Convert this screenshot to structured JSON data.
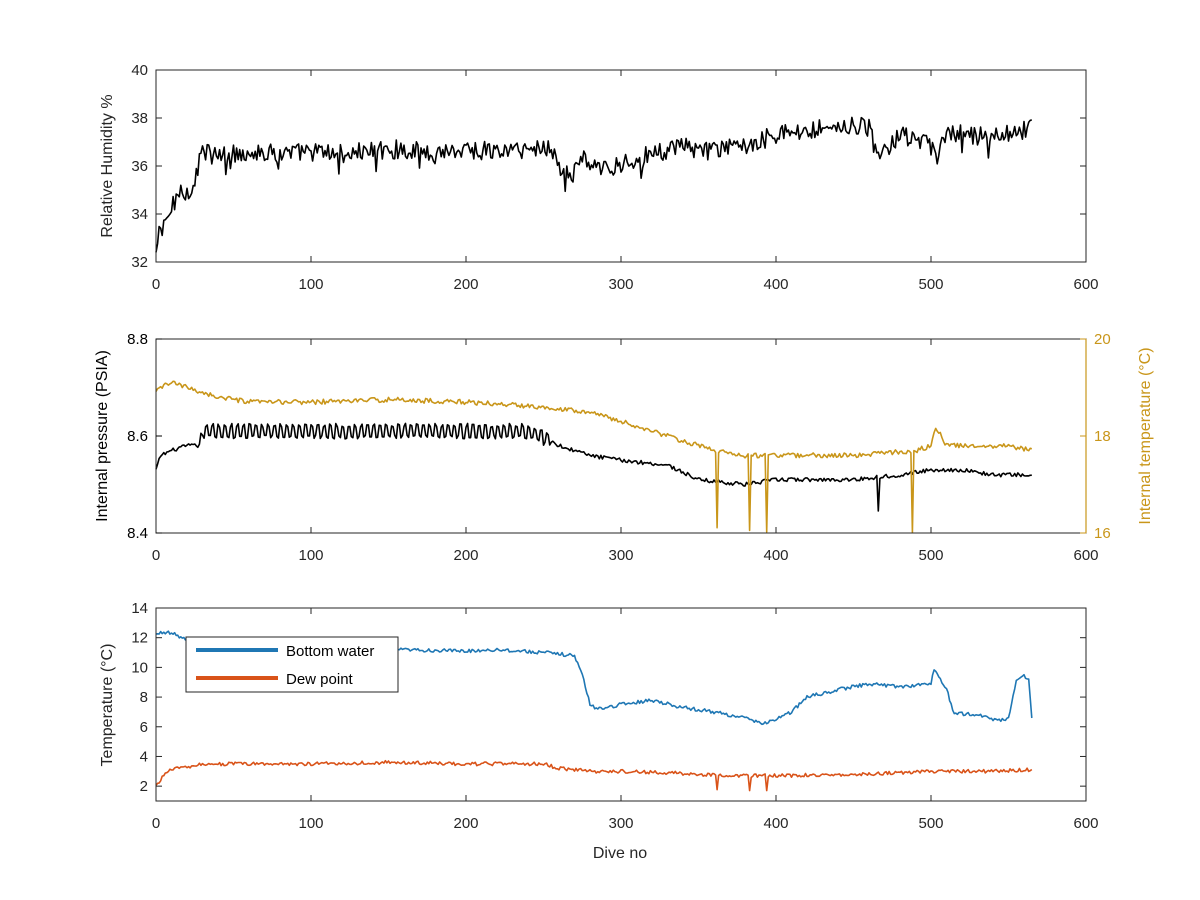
{
  "colors": {
    "black": "#000000",
    "gold": "#C9961A",
    "blue": "#1F77B4",
    "orange": "#D95319",
    "axis": "#262626"
  },
  "chart_data": [
    {
      "type": "line",
      "title": "",
      "xlabel": "",
      "ylabel": "Relative Humidity %",
      "xlim": [
        0,
        600
      ],
      "ylim": [
        32,
        40
      ],
      "xticks": [
        0,
        100,
        200,
        300,
        400,
        500,
        600
      ],
      "yticks": [
        32,
        34,
        36,
        38,
        40
      ],
      "x_tick_labels": [
        "0",
        "100",
        "200",
        "300",
        "400",
        "500",
        "600"
      ],
      "y_tick_labels": [
        "32",
        "34",
        "36",
        "38",
        "40"
      ],
      "series": [
        {
          "color": "#000000",
          "x": [
            0,
            2,
            4,
            6,
            10,
            15,
            20,
            25,
            28,
            30,
            40,
            50,
            60,
            80,
            100,
            120,
            150,
            180,
            200,
            220,
            240,
            255,
            260,
            268,
            275,
            285,
            300,
            320,
            340,
            360,
            380,
            400,
            420,
            440,
            460,
            466,
            480,
            500,
            503,
            510,
            530,
            550,
            560,
            565
          ],
          "y": [
            32.3,
            33.2,
            33.8,
            33.6,
            34.2,
            35.0,
            34.9,
            35.3,
            36.4,
            36.6,
            36.4,
            36.5,
            36.6,
            36.5,
            36.6,
            36.5,
            36.7,
            36.6,
            36.7,
            36.6,
            36.7,
            36.8,
            36.0,
            35.5,
            36.4,
            35.8,
            36.1,
            36.5,
            36.8,
            36.6,
            36.9,
            37.3,
            37.5,
            37.7,
            37.6,
            36.3,
            37.3,
            36.8,
            36.2,
            37.4,
            37.2,
            37.4,
            37.5,
            37.8
          ],
          "noise": 0.4
        }
      ]
    },
    {
      "type": "line",
      "title": "",
      "xlabel": "",
      "ylabel": "Internal pressure (PSIA)",
      "y2label": "Internal temperature (°C)",
      "xlim": [
        0,
        600
      ],
      "ylim": [
        8.4,
        8.8
      ],
      "y2lim": [
        16,
        20
      ],
      "xticks": [
        0,
        100,
        200,
        300,
        400,
        500,
        600
      ],
      "yticks": [
        8.4,
        8.6,
        8.8
      ],
      "y2ticks": [
        16,
        18,
        20
      ],
      "x_tick_labels": [
        "0",
        "100",
        "200",
        "300",
        "400",
        "500",
        "600"
      ],
      "y_tick_labels": [
        "8.4",
        "8.6",
        "8.8"
      ],
      "y2_tick_labels": [
        "16",
        "18",
        "20"
      ],
      "series": [
        {
          "axis": "left",
          "color": "#000000",
          "x": [
            0,
            3,
            10,
            20,
            28,
            30,
            60,
            100,
            150,
            200,
            240,
            255,
            260,
            280,
            300,
            330,
            350,
            380,
            400,
            450,
            480,
            500,
            520,
            540,
            565
          ],
          "y": [
            8.53,
            8.56,
            8.57,
            8.58,
            8.58,
            8.61,
            8.61,
            8.61,
            8.61,
            8.61,
            8.61,
            8.59,
            8.58,
            8.56,
            8.55,
            8.54,
            8.51,
            8.5,
            8.51,
            8.51,
            8.52,
            8.53,
            8.53,
            8.52,
            8.52
          ],
          "noise": 0.004
        },
        {
          "axis": "right",
          "color": "#C9961A",
          "x": [
            0,
            5,
            10,
            20,
            40,
            60,
            100,
            150,
            200,
            250,
            280,
            300,
            320,
            340,
            360,
            380,
            400,
            450,
            490,
            500,
            503,
            510,
            550,
            565
          ],
          "y": [
            18.9,
            19.05,
            19.1,
            19.0,
            18.8,
            18.7,
            18.7,
            18.75,
            18.7,
            18.6,
            18.5,
            18.3,
            18.1,
            17.9,
            17.7,
            17.6,
            17.6,
            17.6,
            17.7,
            17.8,
            18.2,
            17.8,
            17.8,
            17.7
          ],
          "noise": 0.05
        }
      ]
    },
    {
      "type": "line",
      "title": "",
      "xlabel": "Dive no",
      "ylabel": "Temperature (°C)",
      "xlim": [
        0,
        600
      ],
      "ylim": [
        1,
        14
      ],
      "xticks": [
        0,
        100,
        200,
        300,
        400,
        500,
        600
      ],
      "yticks": [
        2,
        4,
        6,
        8,
        10,
        12,
        14
      ],
      "x_tick_labels": [
        "0",
        "100",
        "200",
        "300",
        "400",
        "500",
        "600"
      ],
      "y_tick_labels": [
        "2",
        "4",
        "6",
        "8",
        "10",
        "12",
        "14"
      ],
      "legend": {
        "position": "upper-left",
        "entries": [
          "Bottom water",
          "Dew point"
        ]
      },
      "series": [
        {
          "name": "Bottom water",
          "color": "#1F77B4",
          "x": [
            0,
            5,
            10,
            15,
            20,
            30,
            50,
            100,
            150,
            200,
            220,
            250,
            270,
            275,
            280,
            285,
            300,
            320,
            340,
            360,
            380,
            390,
            400,
            410,
            420,
            440,
            460,
            480,
            500,
            502,
            505,
            510,
            515,
            530,
            545,
            550,
            555,
            560,
            563,
            565
          ],
          "y": [
            12.2,
            12.4,
            12.3,
            12.1,
            11.8,
            11.6,
            11.4,
            11.3,
            11.2,
            11.1,
            11.2,
            11.0,
            10.8,
            9.5,
            7.5,
            7.2,
            7.5,
            7.8,
            7.3,
            7.0,
            6.6,
            6.2,
            6.5,
            7.0,
            8.0,
            8.5,
            8.9,
            8.7,
            8.9,
            9.9,
            9.4,
            8.5,
            6.9,
            6.8,
            6.4,
            6.6,
            9.1,
            9.4,
            9.2,
            6.7
          ],
          "noise": 0.12
        },
        {
          "name": "Dew point",
          "color": "#D95319",
          "x": [
            0,
            3,
            5,
            10,
            15,
            20,
            30,
            50,
            100,
            150,
            200,
            250,
            260,
            280,
            300,
            330,
            350,
            380,
            400,
            450,
            480,
            500,
            520,
            540,
            560,
            565
          ],
          "y": [
            2.0,
            2.4,
            2.8,
            3.1,
            3.3,
            3.2,
            3.5,
            3.5,
            3.5,
            3.6,
            3.5,
            3.5,
            3.2,
            3.0,
            3.0,
            2.9,
            2.8,
            2.7,
            2.7,
            2.8,
            2.9,
            3.0,
            3.0,
            3.0,
            3.1,
            3.1
          ],
          "noise": 0.12
        }
      ]
    }
  ]
}
